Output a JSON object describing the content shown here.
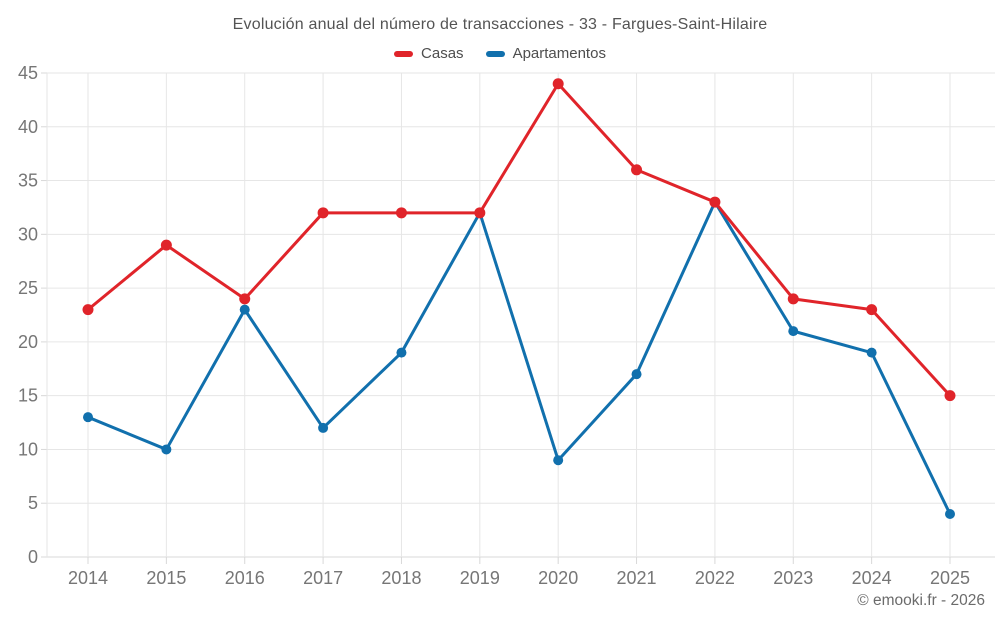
{
  "chart": {
    "title": "Evolución anual del número de transacciones - 33 - Fargues-Saint-Hilaire"
  },
  "footer": {
    "credit": "© emooki.fr - 2026"
  },
  "colors": {
    "grid": "#e6e6e6",
    "axis_line": "#d8d8d8",
    "axis_text": "#767676",
    "title_text": "#545454",
    "casas": "#e0242a",
    "apartamentos": "#1170ad"
  },
  "chart_data": {
    "type": "line",
    "title": "Evolución anual del número de transacciones - 33 - Fargues-Saint-Hilaire",
    "xlabel": "",
    "ylabel": "",
    "categories": [
      "2014",
      "2015",
      "2016",
      "2017",
      "2018",
      "2019",
      "2020",
      "2021",
      "2022",
      "2023",
      "2024",
      "2025"
    ],
    "series": [
      {
        "name": "Casas",
        "color": "#e0242a",
        "values": [
          23,
          29,
          24,
          32,
          32,
          32,
          44,
          36,
          33,
          24,
          23,
          15
        ]
      },
      {
        "name": "Apartamentos",
        "color": "#1170ad",
        "values": [
          13,
          10,
          23,
          12,
          19,
          32,
          9,
          17,
          33,
          21,
          19,
          4
        ]
      }
    ],
    "ylim": [
      0,
      45
    ],
    "ytick_step": 5,
    "yticks": [
      0,
      5,
      10,
      15,
      20,
      25,
      30,
      35,
      40,
      45
    ],
    "grid": true,
    "legend_position": "top",
    "credit": "© emooki.fr - 2026"
  }
}
